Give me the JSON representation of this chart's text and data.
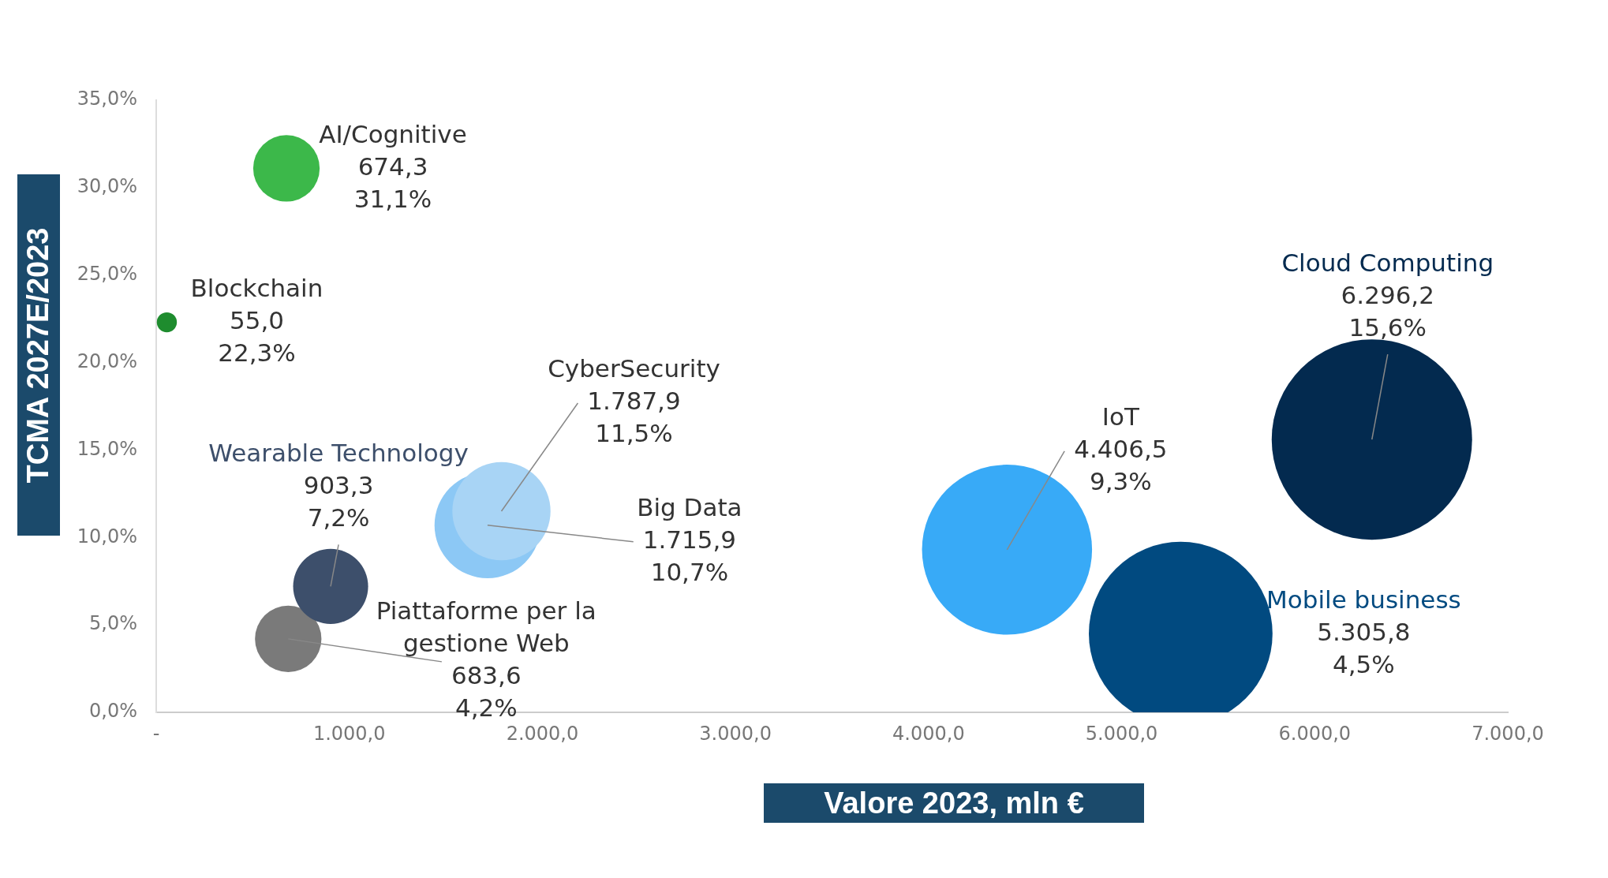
{
  "chart_data": {
    "type": "bubble",
    "xlabel": "Valore 2023, mln €",
    "ylabel": "TCMA 2027E/2023",
    "xlim": [
      0,
      7000
    ],
    "xticks": [
      {
        "value": 0,
        "label": "-"
      },
      {
        "value": 1000,
        "label": "1.000,0"
      },
      {
        "value": 2000,
        "label": "2.000,0"
      },
      {
        "value": 3000,
        "label": "3.000,0"
      },
      {
        "value": 4000,
        "label": "4.000,0"
      },
      {
        "value": 5000,
        "label": "5.000,0"
      },
      {
        "value": 6000,
        "label": "6.000,0"
      },
      {
        "value": 7000,
        "label": "7.000,0"
      }
    ],
    "ylim": [
      0,
      35
    ],
    "yticks": [
      {
        "value": 0,
        "label": "0,0%"
      },
      {
        "value": 5,
        "label": "5,0%"
      },
      {
        "value": 10,
        "label": "10,0%"
      },
      {
        "value": 15,
        "label": "15,0%"
      },
      {
        "value": 20,
        "label": "20,0%"
      },
      {
        "value": 25,
        "label": "25,0%"
      },
      {
        "value": 30,
        "label": "30,0%"
      },
      {
        "value": 35,
        "label": "35,0%"
      }
    ],
    "grid": false,
    "legend": false,
    "series": [
      {
        "name": "AI/Cognitive",
        "color": "#3cb84a",
        "x": [
          674.3
        ],
        "values": [
          31.1
        ],
        "sizes": [
          0.11
        ],
        "value_labels": [
          "674,3\n31,1%"
        ]
      },
      {
        "name": "Blockchain",
        "color": "#1e8c2e",
        "x": [
          55.0
        ],
        "values": [
          22.3
        ],
        "sizes": [
          0.01
        ],
        "value_labels": [
          "55,0\n22,3%"
        ]
      },
      {
        "name": "Wearable Technology",
        "color": "#3d4f6b",
        "x": [
          903.3
        ],
        "values": [
          7.2
        ],
        "sizes": [
          0.14
        ],
        "value_labels": [
          "903,3\n7,2%"
        ]
      },
      {
        "name": "Piattaforme per la gestione Web",
        "color": "#7a7a7a",
        "x": [
          683.6
        ],
        "values": [
          4.2
        ],
        "sizes": [
          0.11
        ],
        "value_labels": [
          "683,6\n4,2%"
        ]
      },
      {
        "name": "CyberSecurity",
        "color": "#a8d4f5",
        "x": [
          1787.9
        ],
        "values": [
          11.5
        ],
        "sizes": [
          0.24
        ],
        "value_labels": [
          "1.787,9\n11,5%"
        ]
      },
      {
        "name": "Big Data",
        "color": "#8cc8f5",
        "x": [
          1715.9
        ],
        "values": [
          10.7
        ],
        "sizes": [
          0.28
        ],
        "value_labels": [
          "1.715,9\n10,7%"
        ]
      },
      {
        "name": "IoT",
        "color": "#38aaf7",
        "x": [
          4406.5
        ],
        "values": [
          9.3
        ],
        "sizes": [
          0.72
        ],
        "value_labels": [
          "4.406,5\n9,3%"
        ]
      },
      {
        "name": "Mobile business",
        "color": "#014a80",
        "x": [
          5305.8
        ],
        "values": [
          4.5
        ],
        "sizes": [
          0.84
        ],
        "value_labels": [
          "5.305,8\n4,5%"
        ]
      },
      {
        "name": "Cloud Computing",
        "color": "#032a4f",
        "x": [
          6296.2
        ],
        "values": [
          15.6
        ],
        "sizes": [
          1
        ],
        "value_labels": [
          "6.296,2\n15,6%"
        ]
      }
    ]
  }
}
